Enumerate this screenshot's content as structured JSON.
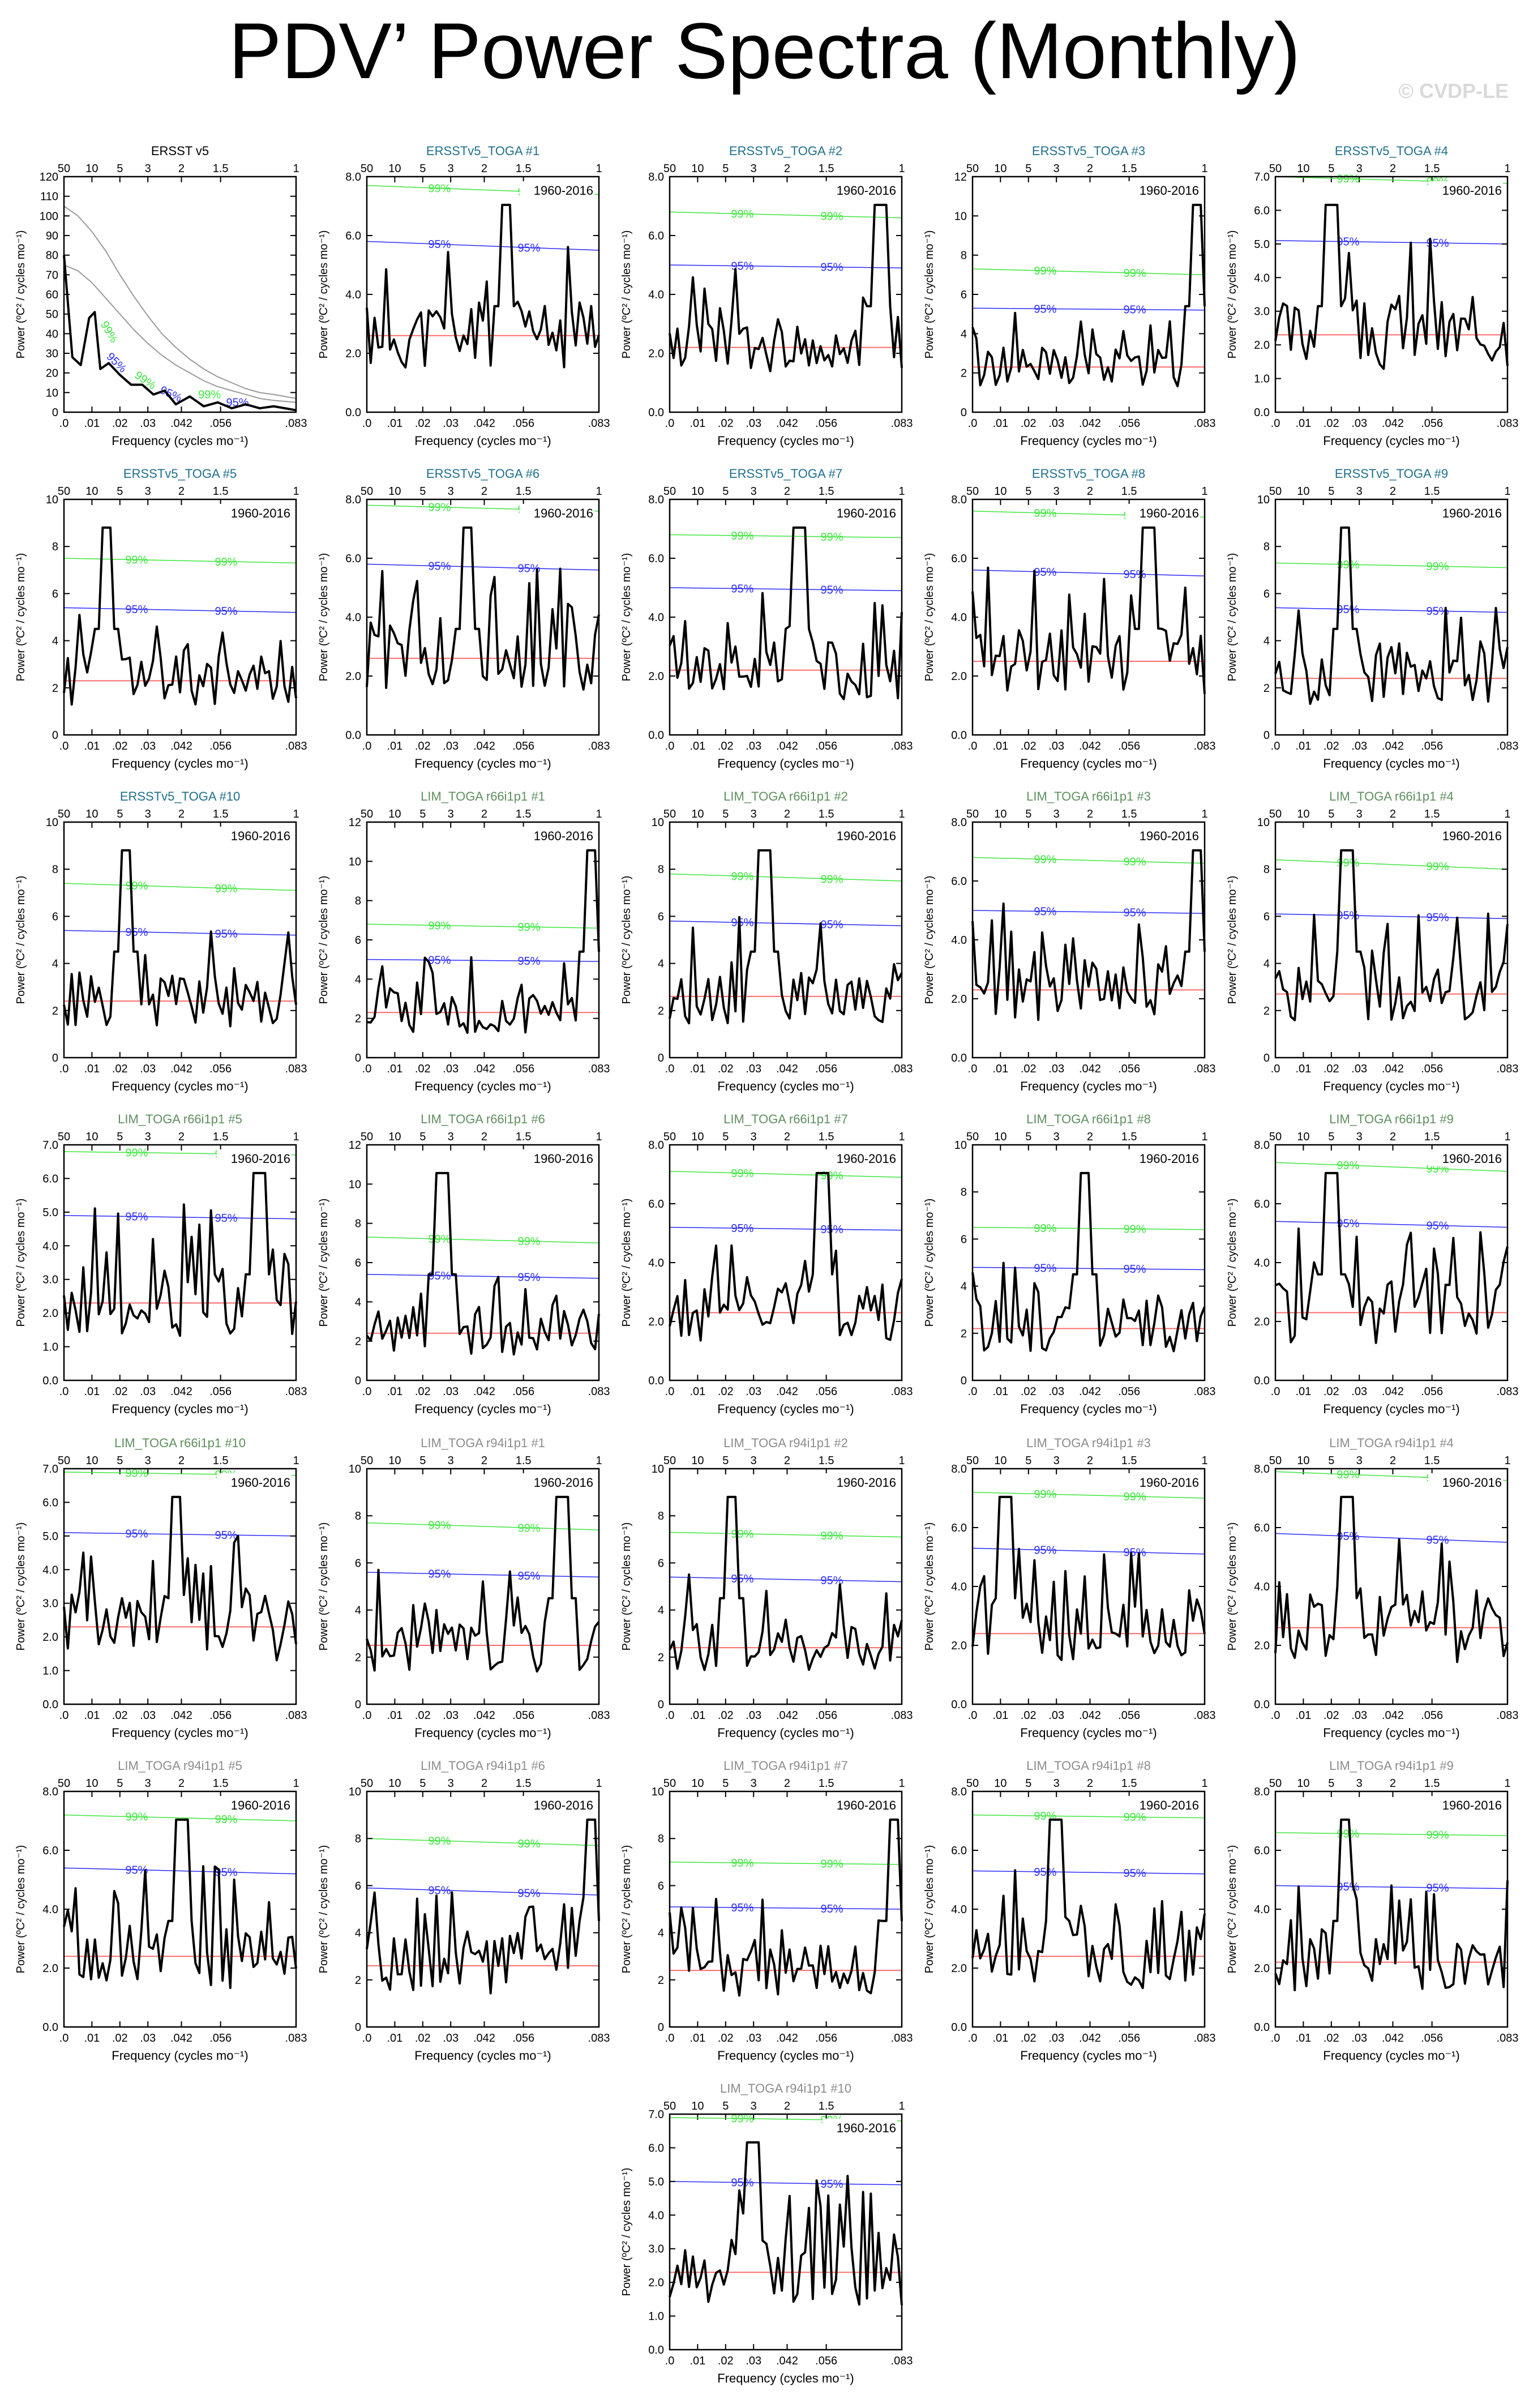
{
  "page": {
    "title": "PDV’ Power Spectra (Monthly)",
    "watermark": "© CVDP-LE"
  },
  "colors": {
    "title_obs": "#000000",
    "title_ersst": "#1f6f8b",
    "title_r66": "#5e8f5e",
    "title_r94": "#8c8c8c",
    "spectrum": "#000000",
    "red_noise": "#ff6b6b",
    "conf95": "#2b2bff",
    "conf99": "#3ee63e",
    "obs_bounds": "#9a9a9a"
  },
  "common": {
    "xlabel": "Frequency (cycles mo⁻¹)",
    "ylabel": "Power (ºC² / cycles mo⁻¹)",
    "x_ticks": [
      ".0",
      ".01",
      ".02",
      ".03",
      ".042",
      ".056",
      ".083"
    ],
    "x_tick_values": [
      0,
      0.01,
      0.02,
      0.03,
      0.042,
      0.056,
      0.083
    ],
    "top_ticks": [
      "50",
      "10",
      "5",
      "3",
      "2",
      "1.5",
      "1"
    ],
    "top_tick_note": "period in years",
    "period_label": "1960-2016",
    "label_95": "95%",
    "label_99": "99%"
  },
  "chart_data": [
    {
      "title": "ERSST v5",
      "title_color_key": "title_obs",
      "type": "line",
      "ylim": [
        0,
        120
      ],
      "ystep": 10,
      "yfmt": 0,
      "observed": true,
      "red": [
        [
          0,
          75
        ],
        [
          0.005,
          72
        ],
        [
          0.01,
          66
        ],
        [
          0.015,
          58
        ],
        [
          0.02,
          50
        ],
        [
          0.025,
          42
        ],
        [
          0.03,
          35
        ],
        [
          0.035,
          29
        ],
        [
          0.04,
          24
        ],
        [
          0.045,
          20
        ],
        [
          0.05,
          16
        ],
        [
          0.055,
          13
        ],
        [
          0.06,
          11
        ],
        [
          0.065,
          9
        ],
        [
          0.07,
          7
        ],
        [
          0.075,
          6
        ],
        [
          0.083,
          5
        ]
      ],
      "upper": [
        [
          0,
          105
        ],
        [
          0.005,
          100
        ],
        [
          0.01,
          92
        ],
        [
          0.015,
          82
        ],
        [
          0.02,
          70
        ],
        [
          0.025,
          59
        ],
        [
          0.03,
          49
        ],
        [
          0.035,
          40
        ],
        [
          0.04,
          33
        ],
        [
          0.045,
          27
        ],
        [
          0.05,
          22
        ],
        [
          0.055,
          18
        ],
        [
          0.06,
          15
        ],
        [
          0.065,
          12
        ],
        [
          0.07,
          10
        ],
        [
          0.075,
          9
        ],
        [
          0.083,
          7
        ]
      ],
      "note": "black curve approximate",
      "spectrum": [
        [
          0,
          80
        ],
        [
          0.003,
          28
        ],
        [
          0.006,
          24
        ],
        [
          0.009,
          48
        ],
        [
          0.011,
          51
        ],
        [
          0.013,
          22
        ],
        [
          0.016,
          25
        ],
        [
          0.02,
          19
        ],
        [
          0.024,
          14
        ],
        [
          0.028,
          14
        ],
        [
          0.032,
          9
        ],
        [
          0.036,
          11
        ],
        [
          0.04,
          4
        ],
        [
          0.045,
          8
        ],
        [
          0.05,
          3
        ],
        [
          0.055,
          5
        ],
        [
          0.06,
          2
        ],
        [
          0.065,
          4
        ],
        [
          0.07,
          2
        ],
        [
          0.075,
          3
        ],
        [
          0.083,
          1
        ]
      ]
    },
    {
      "title": "ERSSTv5_TOGA #1",
      "title_color_key": "title_ersst",
      "type": "line",
      "ylim": [
        0,
        8
      ],
      "ystep": 2,
      "yfmt": 1,
      "red": 2.6,
      "c95": [
        5.8,
        5.5
      ],
      "c99": [
        7.7,
        7.4
      ],
      "peak": 0.05,
      "seed": 11,
      "note": "black curve approximate"
    },
    {
      "title": "ERSSTv5_TOGA #2",
      "title_color_key": "title_ersst",
      "type": "line",
      "ylim": [
        0,
        8
      ],
      "ystep": 2,
      "yfmt": 1,
      "red": 2.2,
      "c95": [
        5.0,
        4.9
      ],
      "c99": [
        6.8,
        6.6
      ],
      "peak": 0.075,
      "seed": 12,
      "note": "black curve approximate"
    },
    {
      "title": "ERSSTv5_TOGA #3",
      "title_color_key": "title_ersst",
      "type": "line",
      "ylim": [
        0,
        12
      ],
      "ystep": 2,
      "yfmt": 0,
      "red": 2.3,
      "c95": [
        5.3,
        5.2
      ],
      "c99": [
        7.3,
        7.0
      ],
      "peak": 0.08,
      "seed": 13,
      "note": "black curve approximate"
    },
    {
      "title": "ERSSTv5_TOGA #4",
      "title_color_key": "title_ersst",
      "type": "line",
      "ylim": [
        0,
        7
      ],
      "ystep": 1,
      "yfmt": 1,
      "red": 2.3,
      "c95": [
        5.1,
        5.0
      ],
      "c99": [
        7.0,
        6.8
      ],
      "peak": 0.02,
      "seed": 14,
      "note": "black curve approximate"
    },
    {
      "title": "ERSSTv5_TOGA #5",
      "title_color_key": "title_ersst",
      "type": "line",
      "ylim": [
        0,
        10
      ],
      "ystep": 2,
      "yfmt": 0,
      "red": 2.3,
      "c95": [
        5.4,
        5.2
      ],
      "c99": [
        7.5,
        7.3
      ],
      "peak": 0.015,
      "seed": 15,
      "note": "black curve approximate"
    },
    {
      "title": "ERSSTv5_TOGA #6",
      "title_color_key": "title_ersst",
      "type": "line",
      "ylim": [
        0,
        8
      ],
      "ystep": 2,
      "yfmt": 1,
      "red": 2.6,
      "c95": [
        5.8,
        5.6
      ],
      "c99": [
        7.8,
        7.6
      ],
      "peak": 0.036,
      "seed": 16,
      "note": "black curve approximate"
    },
    {
      "title": "ERSSTv5_TOGA #7",
      "title_color_key": "title_ersst",
      "type": "line",
      "ylim": [
        0,
        8
      ],
      "ystep": 2,
      "yfmt": 1,
      "red": 2.2,
      "c95": [
        5.0,
        4.9
      ],
      "c99": [
        6.8,
        6.7
      ],
      "peak": 0.046,
      "seed": 17,
      "note": "black curve approximate"
    },
    {
      "title": "ERSSTv5_TOGA #8",
      "title_color_key": "title_ersst",
      "type": "line",
      "ylim": [
        0,
        8
      ],
      "ystep": 2,
      "yfmt": 1,
      "red": 2.5,
      "c95": [
        5.6,
        5.4
      ],
      "c99": [
        7.6,
        7.4
      ],
      "peak": 0.063,
      "seed": 18,
      "note": "black curve approximate"
    },
    {
      "title": "ERSSTv5_TOGA #9",
      "title_color_key": "title_ersst",
      "type": "line",
      "ylim": [
        0,
        10
      ],
      "ystep": 2,
      "yfmt": 0,
      "red": 2.4,
      "c95": [
        5.4,
        5.2
      ],
      "c99": [
        7.3,
        7.1
      ],
      "peak": 0.025,
      "seed": 19,
      "note": "black curve approximate"
    },
    {
      "title": "ERSSTv5_TOGA #10",
      "title_color_key": "title_ersst",
      "type": "line",
      "ylim": [
        0,
        10
      ],
      "ystep": 2,
      "yfmt": 0,
      "red": 2.4,
      "c95": [
        5.4,
        5.2
      ],
      "c99": [
        7.4,
        7.1
      ],
      "peak": 0.022,
      "seed": 20,
      "note": "black curve approximate"
    },
    {
      "title": "LIM_TOGA r66i1p1 #1",
      "title_color_key": "title_r66",
      "type": "line",
      "ylim": [
        0,
        12
      ],
      "ystep": 2,
      "yfmt": 0,
      "red": 2.3,
      "c95": [
        5.0,
        4.9
      ],
      "c99": [
        6.8,
        6.6
      ],
      "peak": 0.08,
      "seed": 21,
      "note": "black curve approximate"
    },
    {
      "title": "LIM_TOGA r66i1p1 #2",
      "title_color_key": "title_r66",
      "type": "line",
      "ylim": [
        0,
        10
      ],
      "ystep": 2,
      "yfmt": 0,
      "red": 2.6,
      "c95": [
        5.8,
        5.6
      ],
      "c99": [
        7.8,
        7.5
      ],
      "peak": 0.034,
      "seed": 22,
      "note": "black curve approximate"
    },
    {
      "title": "LIM_TOGA r66i1p1 #3",
      "title_color_key": "title_r66",
      "type": "line",
      "ylim": [
        0,
        8
      ],
      "ystep": 2,
      "yfmt": 1,
      "red": 2.3,
      "c95": [
        5.0,
        4.9
      ],
      "c99": [
        6.8,
        6.6
      ],
      "peak": 0.08,
      "seed": 23,
      "note": "black curve approximate"
    },
    {
      "title": "LIM_TOGA r66i1p1 #4",
      "title_color_key": "title_r66",
      "type": "line",
      "ylim": [
        0,
        10
      ],
      "ystep": 2,
      "yfmt": 0,
      "red": 2.7,
      "c95": [
        6.1,
        5.9
      ],
      "c99": [
        8.4,
        8.0
      ],
      "peak": 0.026,
      "seed": 24,
      "note": "black curve approximate"
    },
    {
      "title": "LIM_TOGA r66i1p1 #5",
      "title_color_key": "title_r66",
      "type": "line",
      "ylim": [
        0,
        7
      ],
      "ystep": 1,
      "yfmt": 1,
      "red": 2.3,
      "c95": [
        4.9,
        4.8
      ],
      "c99": [
        6.8,
        6.7
      ],
      "peak": 0.07,
      "seed": 25,
      "note": "black curve approximate"
    },
    {
      "title": "LIM_TOGA r66i1p1 #6",
      "title_color_key": "title_r66",
      "type": "line",
      "ylim": [
        0,
        12
      ],
      "ystep": 2,
      "yfmt": 0,
      "red": 2.4,
      "c95": [
        5.4,
        5.2
      ],
      "c99": [
        7.3,
        7.0
      ],
      "peak": 0.027,
      "seed": 26,
      "note": "black curve approximate"
    },
    {
      "title": "LIM_TOGA r66i1p1 #7",
      "title_color_key": "title_r66",
      "type": "line",
      "ylim": [
        0,
        8
      ],
      "ystep": 2,
      "yfmt": 1,
      "red": 2.3,
      "c95": [
        5.2,
        5.1
      ],
      "c99": [
        7.1,
        6.9
      ],
      "peak": 0.055,
      "seed": 27,
      "note": "black curve approximate"
    },
    {
      "title": "LIM_TOGA r66i1p1 #8",
      "title_color_key": "title_r66",
      "type": "line",
      "ylim": [
        0,
        10
      ],
      "ystep": 2,
      "yfmt": 0,
      "red": 2.2,
      "c95": [
        4.8,
        4.7
      ],
      "c99": [
        6.5,
        6.4
      ],
      "peak": 0.04,
      "seed": 28,
      "note": "black curve approximate"
    },
    {
      "title": "LIM_TOGA r66i1p1 #9",
      "title_color_key": "title_r66",
      "type": "line",
      "ylim": [
        0,
        8
      ],
      "ystep": 2,
      "yfmt": 1,
      "red": 2.3,
      "c95": [
        5.4,
        5.2
      ],
      "c99": [
        7.4,
        7.1
      ],
      "peak": 0.02,
      "seed": 29,
      "note": "black curve approximate"
    },
    {
      "title": "LIM_TOGA r66i1p1 #10",
      "title_color_key": "title_r66",
      "type": "line",
      "ylim": [
        0,
        7
      ],
      "ystep": 1,
      "yfmt": 1,
      "red": 2.3,
      "c95": [
        5.1,
        5.0
      ],
      "c99": [
        6.9,
        6.8
      ],
      "peak": 0.04,
      "seed": 30,
      "note": "black curve approximate"
    },
    {
      "title": "LIM_TOGA r94i1p1 #1",
      "title_color_key": "title_r94",
      "type": "line",
      "ylim": [
        0,
        10
      ],
      "ystep": 2,
      "yfmt": 0,
      "red": 2.5,
      "c95": [
        5.6,
        5.4
      ],
      "c99": [
        7.7,
        7.4
      ],
      "peak": 0.07,
      "seed": 31,
      "note": "black curve approximate"
    },
    {
      "title": "LIM_TOGA r94i1p1 #2",
      "title_color_key": "title_r94",
      "type": "line",
      "ylim": [
        0,
        10
      ],
      "ystep": 2,
      "yfmt": 0,
      "red": 2.4,
      "c95": [
        5.4,
        5.2
      ],
      "c99": [
        7.3,
        7.1
      ],
      "peak": 0.022,
      "seed": 32,
      "note": "black curve approximate"
    },
    {
      "title": "LIM_TOGA r94i1p1 #3",
      "title_color_key": "title_r94",
      "type": "line",
      "ylim": [
        0,
        8
      ],
      "ystep": 2,
      "yfmt": 1,
      "red": 2.4,
      "c95": [
        5.3,
        5.1
      ],
      "c99": [
        7.2,
        7.0
      ],
      "peak": 0.012,
      "seed": 33,
      "note": "black curve approximate"
    },
    {
      "title": "LIM_TOGA r94i1p1 #4",
      "title_color_key": "title_r94",
      "type": "line",
      "ylim": [
        0,
        8
      ],
      "ystep": 2,
      "yfmt": 1,
      "red": 2.6,
      "c95": [
        5.8,
        5.5
      ],
      "c99": [
        7.9,
        7.6
      ],
      "peak": 0.026,
      "seed": 34,
      "note": "black curve approximate"
    },
    {
      "title": "LIM_TOGA r94i1p1 #5",
      "title_color_key": "title_r94",
      "type": "line",
      "ylim": [
        0,
        8
      ],
      "ystep": 2,
      "yfmt": 1,
      "red": 2.4,
      "c95": [
        5.4,
        5.2
      ],
      "c99": [
        7.2,
        7.0
      ],
      "peak": 0.042,
      "seed": 35,
      "note": "black curve approximate"
    },
    {
      "title": "LIM_TOGA r94i1p1 #6",
      "title_color_key": "title_r94",
      "type": "line",
      "ylim": [
        0,
        10
      ],
      "ystep": 2,
      "yfmt": 0,
      "red": 2.6,
      "c95": [
        5.9,
        5.6
      ],
      "c99": [
        8.0,
        7.7
      ],
      "peak": 0.08,
      "seed": 36,
      "note": "black curve approximate"
    },
    {
      "title": "LIM_TOGA r94i1p1 #7",
      "title_color_key": "title_r94",
      "type": "line",
      "ylim": [
        0,
        10
      ],
      "ystep": 2,
      "yfmt": 0,
      "red": 2.4,
      "c95": [
        5.1,
        5.0
      ],
      "c99": [
        7.0,
        6.9
      ],
      "peak": 0.08,
      "seed": 37,
      "note": "black curve approximate"
    },
    {
      "title": "LIM_TOGA r94i1p1 #8",
      "title_color_key": "title_r94",
      "type": "line",
      "ylim": [
        0,
        8
      ],
      "ystep": 2,
      "yfmt": 1,
      "red": 2.4,
      "c95": [
        5.3,
        5.2
      ],
      "c99": [
        7.2,
        7.1
      ],
      "peak": 0.03,
      "seed": 38,
      "note": "black curve approximate"
    },
    {
      "title": "LIM_TOGA r94i1p1 #9",
      "title_color_key": "title_r94",
      "type": "line",
      "ylim": [
        0,
        8
      ],
      "ystep": 2,
      "yfmt": 1,
      "red": 2.2,
      "c95": [
        4.8,
        4.7
      ],
      "c99": [
        6.6,
        6.5
      ],
      "peak": 0.025,
      "seed": 39,
      "note": "black curve approximate"
    },
    {
      "title": "LIM_TOGA r94i1p1 #10",
      "title_color_key": "title_r94",
      "type": "line",
      "ylim": [
        0,
        7
      ],
      "ystep": 1,
      "yfmt": 1,
      "red": 2.3,
      "c95": [
        5.0,
        4.9
      ],
      "c99": [
        6.9,
        6.8
      ],
      "peak": 0.03,
      "seed": 40,
      "note": "black curve approximate"
    }
  ]
}
